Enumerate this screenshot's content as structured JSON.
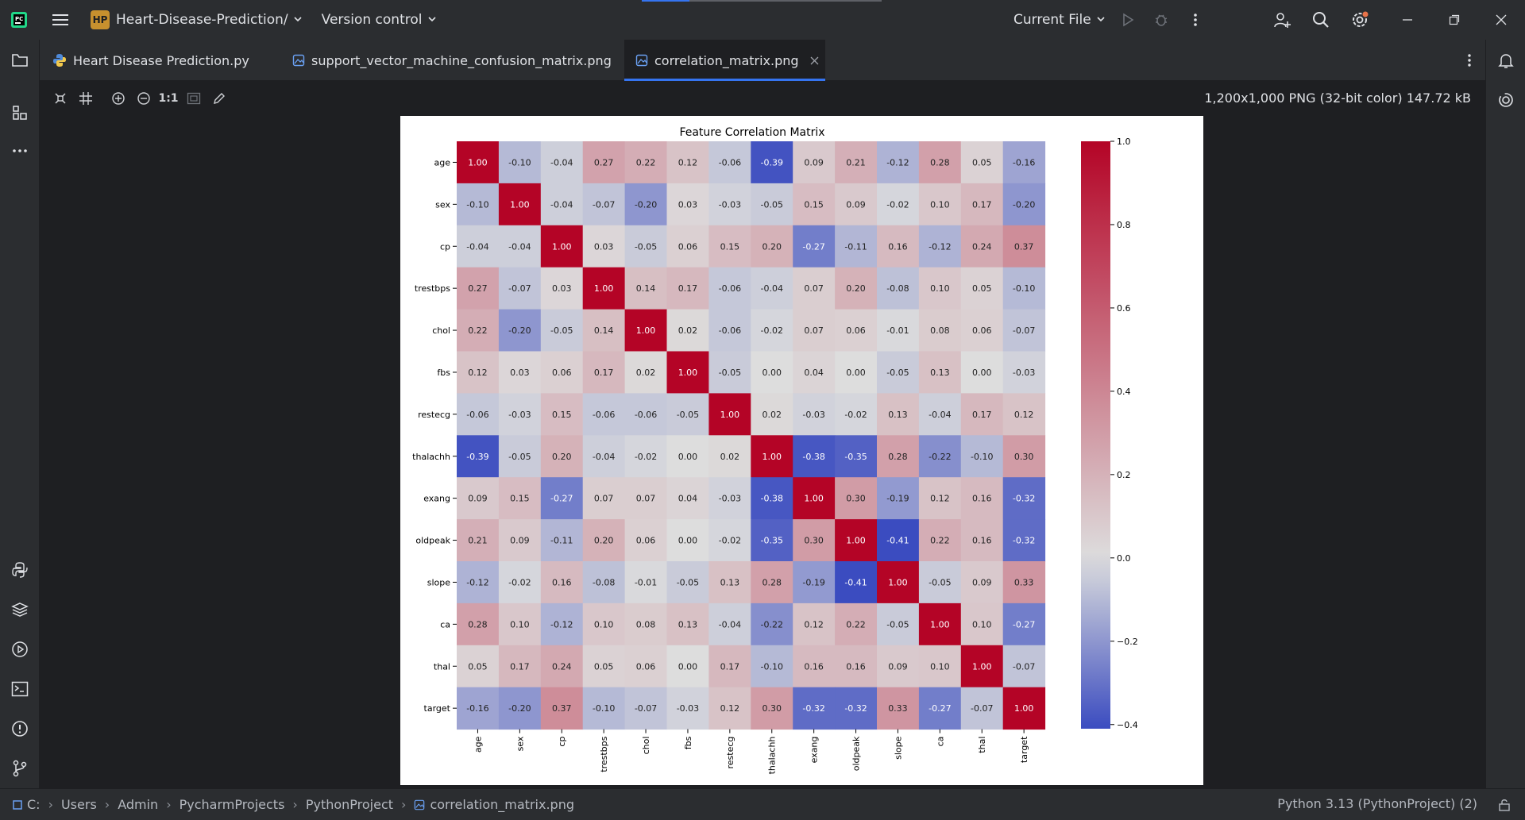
{
  "titlebar": {
    "project_badge": "HP",
    "project_name": "Heart-Disease-Prediction/",
    "vcs_label": "Version control",
    "run_config": "Current File"
  },
  "tabs": [
    {
      "label": "Heart Disease Prediction.py",
      "icon": "python-file-icon",
      "active": false
    },
    {
      "label": "support_vector_machine_confusion_matrix.png",
      "icon": "image-file-icon",
      "active": false
    },
    {
      "label": "correlation_matrix.png",
      "icon": "image-file-icon",
      "active": true
    }
  ],
  "image_toolbar": {
    "actual_size_label": "1:1",
    "image_info": "1,200x1,000 PNG (32-bit color) 147.72 kB"
  },
  "statusbar": {
    "breadcrumbs": [
      "C:",
      "Users",
      "Admin",
      "PycharmProjects",
      "PythonProject",
      "correlation_matrix.png"
    ],
    "interpreter": "Python 3.13 (PythonProject) (2)"
  },
  "colors": {
    "bg": "#1e1f22",
    "panel": "#2b2d30",
    "accent": "#3574f0",
    "heat_low": "#3b4cc0",
    "heat_mid": "#dddddd",
    "heat_high": "#b40426"
  },
  "chart_data": {
    "type": "heatmap",
    "title": "Feature Correlation Matrix",
    "labels": [
      "age",
      "sex",
      "cp",
      "trestbps",
      "chol",
      "fbs",
      "restecg",
      "thalachh",
      "exang",
      "oldpeak",
      "slope",
      "ca",
      "thal",
      "target"
    ],
    "values": [
      [
        1.0,
        -0.1,
        -0.04,
        0.27,
        0.22,
        0.12,
        -0.06,
        -0.39,
        0.09,
        0.21,
        -0.12,
        0.28,
        0.05,
        -0.16
      ],
      [
        -0.1,
        1.0,
        -0.04,
        -0.07,
        -0.2,
        0.03,
        -0.03,
        -0.05,
        0.15,
        0.09,
        -0.02,
        0.1,
        0.17,
        -0.2
      ],
      [
        -0.04,
        -0.04,
        1.0,
        0.03,
        -0.05,
        0.06,
        0.15,
        0.2,
        -0.27,
        -0.11,
        0.16,
        -0.12,
        0.24,
        0.37
      ],
      [
        0.27,
        -0.07,
        0.03,
        1.0,
        0.14,
        0.17,
        -0.06,
        -0.04,
        0.07,
        0.2,
        -0.08,
        0.1,
        0.05,
        -0.1
      ],
      [
        0.22,
        -0.2,
        -0.05,
        0.14,
        1.0,
        0.02,
        -0.06,
        -0.02,
        0.07,
        0.06,
        -0.01,
        0.08,
        0.06,
        -0.07
      ],
      [
        0.12,
        0.03,
        0.06,
        0.17,
        0.02,
        1.0,
        -0.05,
        -0.0,
        0.04,
        0.0,
        -0.05,
        0.13,
        -0.0,
        -0.03
      ],
      [
        -0.06,
        -0.03,
        0.15,
        -0.06,
        -0.06,
        -0.05,
        1.0,
        0.02,
        -0.03,
        -0.02,
        0.13,
        -0.04,
        0.17,
        0.12
      ],
      [
        -0.39,
        -0.05,
        0.2,
        -0.04,
        -0.02,
        -0.0,
        0.02,
        1.0,
        -0.38,
        -0.35,
        0.28,
        -0.22,
        -0.1,
        0.3
      ],
      [
        0.09,
        0.15,
        -0.27,
        0.07,
        0.07,
        0.04,
        -0.03,
        -0.38,
        1.0,
        0.3,
        -0.19,
        0.12,
        0.16,
        -0.32
      ],
      [
        0.21,
        0.09,
        -0.11,
        0.2,
        0.06,
        0.0,
        -0.02,
        -0.35,
        0.3,
        1.0,
        -0.41,
        0.22,
        0.16,
        -0.32
      ],
      [
        -0.12,
        -0.02,
        0.16,
        -0.08,
        -0.01,
        -0.05,
        0.13,
        0.28,
        -0.19,
        -0.41,
        1.0,
        -0.05,
        0.09,
        0.33
      ],
      [
        0.28,
        0.1,
        -0.12,
        0.1,
        0.08,
        0.13,
        -0.04,
        -0.22,
        0.12,
        0.22,
        -0.05,
        1.0,
        0.1,
        -0.27
      ],
      [
        0.05,
        0.17,
        0.24,
        0.05,
        0.06,
        -0.0,
        0.17,
        -0.1,
        0.16,
        0.16,
        0.09,
        0.1,
        1.0,
        -0.07
      ],
      [
        -0.16,
        -0.2,
        0.37,
        -0.1,
        -0.07,
        -0.03,
        0.12,
        0.3,
        -0.32,
        -0.32,
        0.33,
        -0.27,
        -0.07,
        1.0
      ]
    ],
    "colorbar": {
      "range": [
        -0.41,
        1.0
      ],
      "ticks": [
        1.0,
        0.8,
        0.6,
        0.4,
        0.2,
        0.0,
        -0.2,
        -0.4
      ],
      "tick_labels": [
        "1.0",
        "0.8",
        "0.6",
        "0.4",
        "0.2",
        "0.0",
        "−0.2",
        "−0.4"
      ],
      "colormap": "coolwarm"
    },
    "annotations": true
  }
}
